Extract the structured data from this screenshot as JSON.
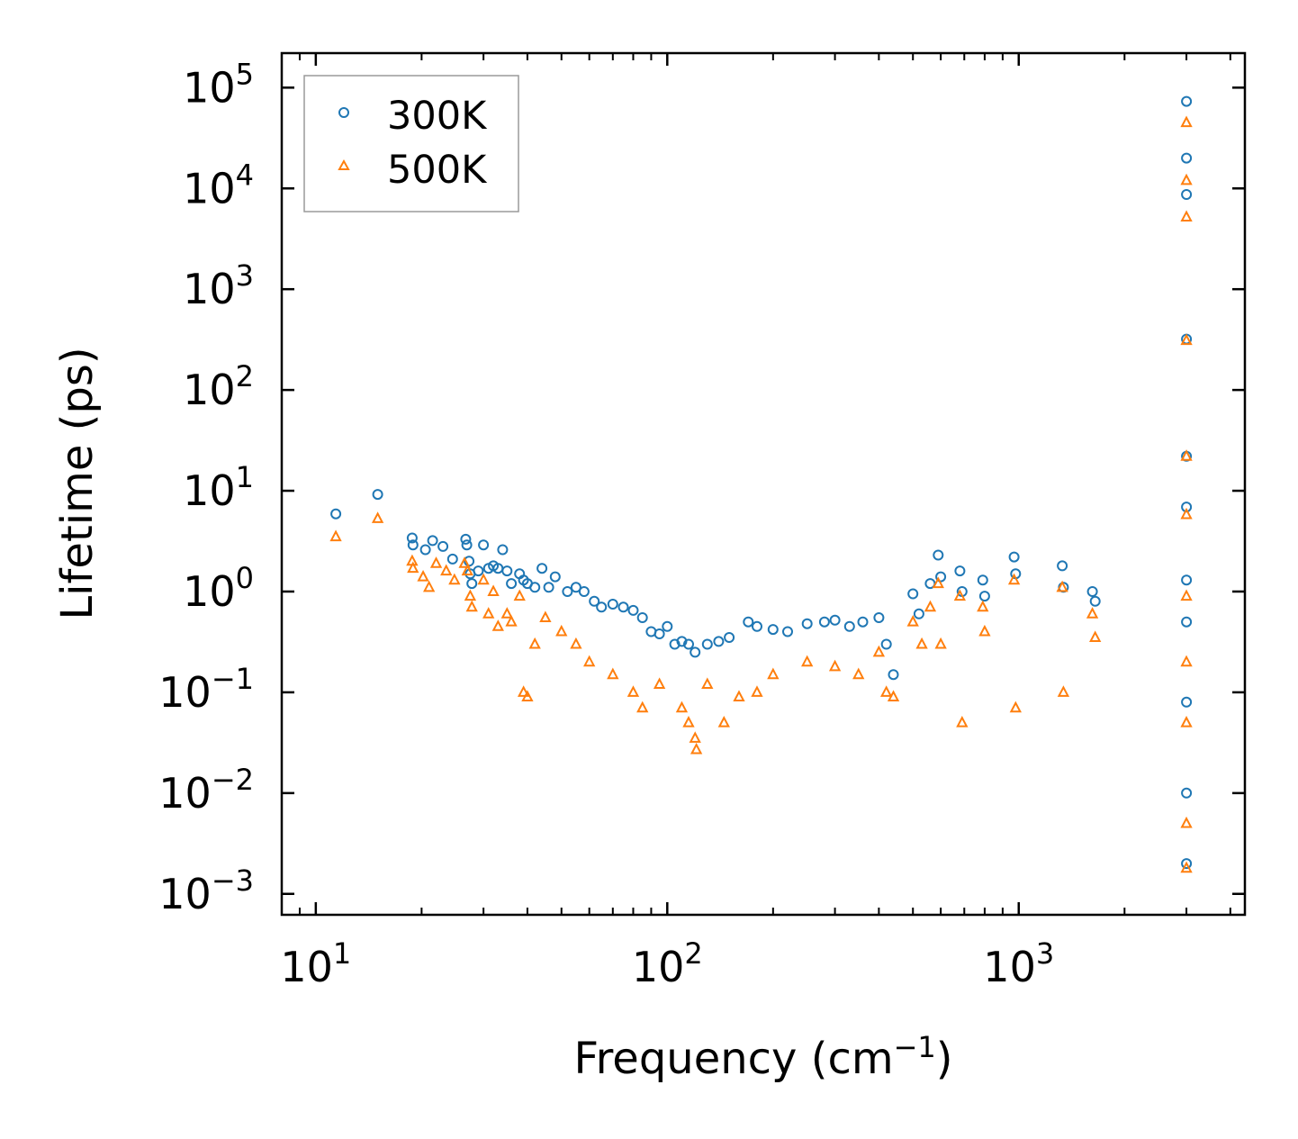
{
  "chart_data": {
    "type": "scatter",
    "title": "",
    "xlabel": "Frequency (cm",
    "xlabel_sup": "−1",
    "xlabel_suffix": ")",
    "ylabel": "Lifetime (ps)",
    "xscale": "log",
    "yscale": "log",
    "xlim": [
      8,
      4400
    ],
    "ylim": [
      0.00062,
      220000
    ],
    "x_ticks": [
      {
        "value": 10,
        "base": "10",
        "exp": "1"
      },
      {
        "value": 100,
        "base": "10",
        "exp": "2"
      },
      {
        "value": 1000,
        "base": "10",
        "exp": "3"
      }
    ],
    "y_ticks": [
      {
        "value": 0.001,
        "base": "10",
        "exp": "−3"
      },
      {
        "value": 0.01,
        "base": "10",
        "exp": "−2"
      },
      {
        "value": 0.1,
        "base": "10",
        "exp": "−1"
      },
      {
        "value": 1,
        "base": "10",
        "exp": "0"
      },
      {
        "value": 10,
        "base": "10",
        "exp": "1"
      },
      {
        "value": 100,
        "base": "10",
        "exp": "2"
      },
      {
        "value": 1000,
        "base": "10",
        "exp": "3"
      },
      {
        "value": 10000,
        "base": "10",
        "exp": "4"
      },
      {
        "value": 100000,
        "base": "10",
        "exp": "5"
      }
    ],
    "legend_position": "top-left",
    "series": [
      {
        "name": "300K",
        "marker": "circle",
        "color": "#1f77b4",
        "points": [
          [
            11.4,
            5.9
          ],
          [
            15.0,
            9.2
          ],
          [
            18.8,
            3.4
          ],
          [
            18.9,
            2.9
          ],
          [
            20.5,
            2.6
          ],
          [
            21.5,
            3.2
          ],
          [
            23.0,
            2.8
          ],
          [
            24.5,
            2.1
          ],
          [
            26.7,
            3.3
          ],
          [
            26.9,
            2.9
          ],
          [
            27.3,
            2.0
          ],
          [
            27.5,
            1.5
          ],
          [
            27.8,
            1.2
          ],
          [
            29.0,
            1.6
          ],
          [
            30.0,
            2.9
          ],
          [
            31.0,
            1.7
          ],
          [
            32.0,
            1.8
          ],
          [
            33.0,
            1.7
          ],
          [
            34.0,
            2.6
          ],
          [
            35.0,
            1.6
          ],
          [
            36.0,
            1.2
          ],
          [
            38.0,
            1.5
          ],
          [
            39.0,
            1.3
          ],
          [
            40.0,
            1.2
          ],
          [
            42.0,
            1.1
          ],
          [
            44.0,
            1.7
          ],
          [
            46.0,
            1.1
          ],
          [
            48.0,
            1.4
          ],
          [
            52.0,
            1.0
          ],
          [
            55.0,
            1.1
          ],
          [
            58.0,
            1.0
          ],
          [
            62.0,
            0.8
          ],
          [
            65.0,
            0.7
          ],
          [
            70.0,
            0.75
          ],
          [
            75.0,
            0.7
          ],
          [
            80.0,
            0.65
          ],
          [
            85.0,
            0.55
          ],
          [
            90.0,
            0.4
          ],
          [
            95.0,
            0.38
          ],
          [
            100.0,
            0.45
          ],
          [
            105.0,
            0.3
          ],
          [
            110.0,
            0.32
          ],
          [
            115.0,
            0.3
          ],
          [
            120.0,
            0.25
          ],
          [
            130.0,
            0.3
          ],
          [
            140.0,
            0.32
          ],
          [
            150.0,
            0.35
          ],
          [
            170.0,
            0.5
          ],
          [
            180.0,
            0.45
          ],
          [
            200.0,
            0.42
          ],
          [
            220.0,
            0.4
          ],
          [
            250.0,
            0.48
          ],
          [
            280.0,
            0.5
          ],
          [
            300.0,
            0.52
          ],
          [
            330.0,
            0.45
          ],
          [
            360.0,
            0.5
          ],
          [
            400.0,
            0.55
          ],
          [
            420.0,
            0.3
          ],
          [
            440.0,
            0.15
          ],
          [
            500.0,
            0.95
          ],
          [
            520.0,
            0.6
          ],
          [
            560.0,
            1.2
          ],
          [
            590.0,
            2.3
          ],
          [
            600.0,
            1.4
          ],
          [
            680.0,
            1.6
          ],
          [
            690.0,
            1.0
          ],
          [
            790.0,
            1.3
          ],
          [
            800.0,
            0.9
          ],
          [
            970.0,
            2.2
          ],
          [
            980.0,
            1.5
          ],
          [
            1330.0,
            1.8
          ],
          [
            1340.0,
            1.1
          ],
          [
            1620.0,
            1.0
          ],
          [
            1650.0,
            0.8
          ],
          [
            3000.0,
            73000
          ],
          [
            3000.0,
            20000
          ],
          [
            3000.0,
            8700
          ],
          [
            3000.0,
            320
          ],
          [
            3000.0,
            22
          ],
          [
            3000.0,
            6.9
          ],
          [
            3000.0,
            1.3
          ],
          [
            3000.0,
            0.5
          ],
          [
            3000.0,
            0.08
          ],
          [
            3000.0,
            0.01
          ],
          [
            3000.0,
            0.002
          ]
        ]
      },
      {
        "name": "500K",
        "marker": "triangle",
        "color": "#ff7f0e",
        "points": [
          [
            11.4,
            3.5
          ],
          [
            15.0,
            5.3
          ],
          [
            18.8,
            2.0
          ],
          [
            18.9,
            1.7
          ],
          [
            20.2,
            1.4
          ],
          [
            21.0,
            1.1
          ],
          [
            22.0,
            1.9
          ],
          [
            23.5,
            1.6
          ],
          [
            24.8,
            1.3
          ],
          [
            26.5,
            1.9
          ],
          [
            27.0,
            1.6
          ],
          [
            27.5,
            0.9
          ],
          [
            27.8,
            0.7
          ],
          [
            30.0,
            1.3
          ],
          [
            31.0,
            0.6
          ],
          [
            32.0,
            1.0
          ],
          [
            33.0,
            0.45
          ],
          [
            35.0,
            0.6
          ],
          [
            36.0,
            0.5
          ],
          [
            38.0,
            0.9
          ],
          [
            39.0,
            0.1
          ],
          [
            40.0,
            0.09
          ],
          [
            42.0,
            0.3
          ],
          [
            45.0,
            0.55
          ],
          [
            50.0,
            0.4
          ],
          [
            55.0,
            0.3
          ],
          [
            60.0,
            0.2
          ],
          [
            70.0,
            0.15
          ],
          [
            80.0,
            0.1
          ],
          [
            85.0,
            0.07
          ],
          [
            95.0,
            0.12
          ],
          [
            110.0,
            0.07
          ],
          [
            115.0,
            0.05
          ],
          [
            120.0,
            0.035
          ],
          [
            121.0,
            0.027
          ],
          [
            130.0,
            0.12
          ],
          [
            145.0,
            0.05
          ],
          [
            160.0,
            0.09
          ],
          [
            180.0,
            0.1
          ],
          [
            200.0,
            0.15
          ],
          [
            250.0,
            0.2
          ],
          [
            300.0,
            0.18
          ],
          [
            350.0,
            0.15
          ],
          [
            400.0,
            0.25
          ],
          [
            420.0,
            0.1
          ],
          [
            440.0,
            0.09
          ],
          [
            500.0,
            0.5
          ],
          [
            530.0,
            0.3
          ],
          [
            560.0,
            0.7
          ],
          [
            590.0,
            1.2
          ],
          [
            600.0,
            0.3
          ],
          [
            680.0,
            0.9
          ],
          [
            690.0,
            0.05
          ],
          [
            790.0,
            0.7
          ],
          [
            800.0,
            0.4
          ],
          [
            970.0,
            1.3
          ],
          [
            980.0,
            0.07
          ],
          [
            1330.0,
            1.1
          ],
          [
            1340.0,
            0.1
          ],
          [
            1620.0,
            0.6
          ],
          [
            1650.0,
            0.35
          ],
          [
            3000.0,
            45000
          ],
          [
            3000.0,
            12000
          ],
          [
            3000.0,
            5200
          ],
          [
            3000.0,
            310
          ],
          [
            3000.0,
            22
          ],
          [
            3000.0,
            5.8
          ],
          [
            3000.0,
            0.9
          ],
          [
            3000.0,
            0.2
          ],
          [
            3000.0,
            0.05
          ],
          [
            3000.0,
            0.005
          ],
          [
            3000.0,
            0.0018
          ]
        ]
      }
    ]
  }
}
